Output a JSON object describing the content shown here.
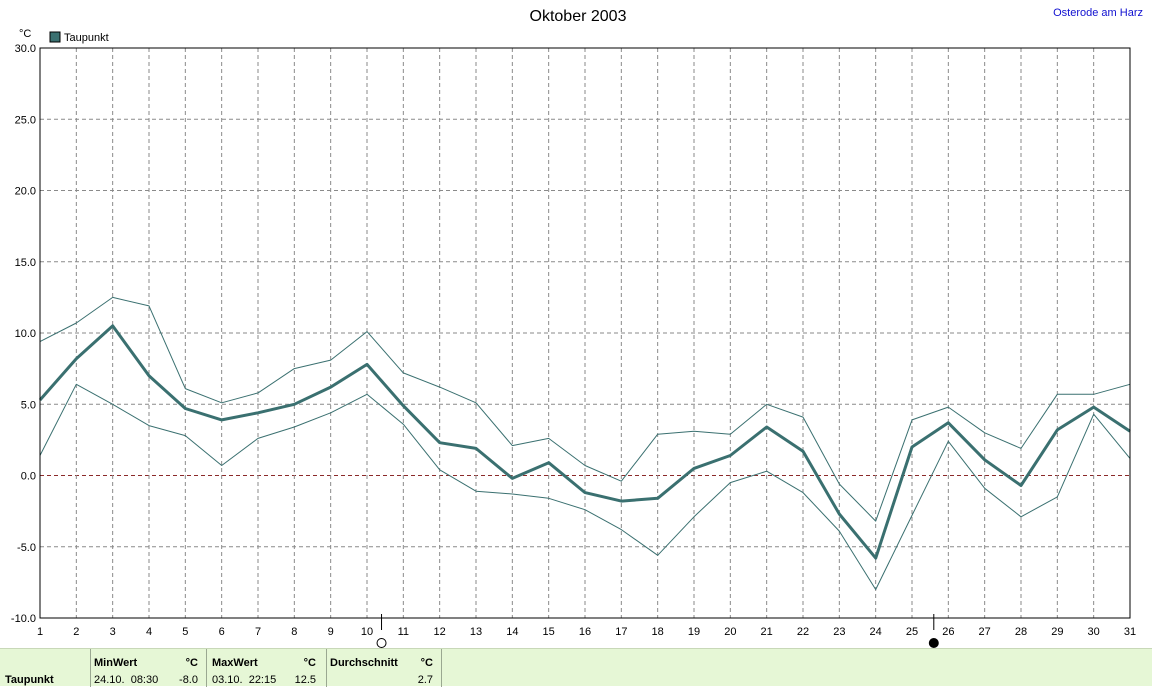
{
  "chart_data": {
    "type": "line",
    "title": "Oktober 2003",
    "location": "Osterode am Harz",
    "ylabel": "°C",
    "ylim": [
      -10,
      30
    ],
    "yticks": [
      "-10.0",
      "-5.0",
      "0.0",
      "5.0",
      "10.0",
      "15.0",
      "20.0",
      "25.0",
      "30.0"
    ],
    "xlim": [
      1,
      31
    ],
    "xticks": [
      "1",
      "2",
      "3",
      "4",
      "5",
      "6",
      "7",
      "8",
      "9",
      "10",
      "11",
      "12",
      "13",
      "14",
      "15",
      "16",
      "17",
      "18",
      "19",
      "20",
      "21",
      "22",
      "23",
      "24",
      "25",
      "26",
      "27",
      "28",
      "29",
      "30",
      "31"
    ],
    "grid": true,
    "legend_position": "top-left",
    "legend_label": "Taupunkt",
    "series": [
      {
        "name": "Taupunkt",
        "role": "mean",
        "color": "#3a7070",
        "x": [
          1,
          2,
          3,
          4,
          5,
          6,
          7,
          8,
          9,
          10,
          11,
          12,
          13,
          14,
          15,
          16,
          17,
          18,
          19,
          20,
          21,
          22,
          23,
          24,
          25,
          26,
          27,
          28,
          29,
          30,
          31
        ],
        "values": [
          5.3,
          8.2,
          10.5,
          7.0,
          4.7,
          3.9,
          4.4,
          5.0,
          6.2,
          7.8,
          4.9,
          2.3,
          1.9,
          -0.2,
          0.9,
          -1.2,
          -1.8,
          -1.6,
          0.5,
          1.4,
          3.4,
          1.7,
          -2.7,
          -5.8,
          2.0,
          3.7,
          1.1,
          -0.7,
          3.2,
          4.8,
          3.1
        ]
      },
      {
        "role": "max",
        "color": "#3a7070",
        "x": [
          1,
          2,
          3,
          4,
          5,
          6,
          7,
          8,
          9,
          10,
          11,
          12,
          13,
          14,
          15,
          16,
          17,
          18,
          19,
          20,
          21,
          22,
          23,
          24,
          25,
          26,
          27,
          28,
          29,
          30,
          31
        ],
        "values": [
          9.4,
          10.7,
          12.5,
          11.9,
          6.1,
          5.1,
          5.8,
          7.5,
          8.1,
          10.1,
          7.2,
          6.2,
          5.1,
          2.1,
          2.6,
          0.7,
          -0.4,
          2.9,
          3.1,
          2.9,
          5.0,
          4.1,
          -0.6,
          -3.2,
          3.9,
          4.8,
          3.0,
          1.9,
          5.7,
          5.7,
          6.4
        ]
      },
      {
        "role": "min",
        "color": "#3a7070",
        "x": [
          1,
          2,
          3,
          4,
          5,
          6,
          7,
          8,
          9,
          10,
          11,
          12,
          13,
          14,
          15,
          16,
          17,
          18,
          19,
          20,
          21,
          22,
          23,
          24,
          25,
          26,
          27,
          28,
          29,
          30,
          31
        ],
        "values": [
          1.4,
          6.4,
          5.0,
          3.5,
          2.8,
          0.7,
          2.6,
          3.4,
          4.4,
          5.7,
          3.6,
          0.4,
          -1.1,
          -1.3,
          -1.6,
          -2.4,
          -3.8,
          -5.6,
          -2.9,
          -0.5,
          0.3,
          -1.2,
          -3.9,
          -8.0,
          -2.8,
          2.4,
          -0.9,
          -2.9,
          -1.5,
          4.3,
          1.2
        ]
      }
    ],
    "moon_markers": [
      {
        "type": "full-moon",
        "x": 10.4
      },
      {
        "type": "new-moon",
        "x": 25.6
      }
    ]
  },
  "stats": {
    "row_label": "Taupunkt",
    "min_label": "MinWert",
    "min_unit": "°C",
    "min_time": "24.10.  08:30",
    "min_value": "-8.0",
    "max_label": "MaxWert",
    "max_unit": "°C",
    "max_time": "03.10.  22:15",
    "max_value": "12.5",
    "avg_label": "Durchschnitt",
    "avg_unit": "°C",
    "avg_value": "2.7"
  }
}
